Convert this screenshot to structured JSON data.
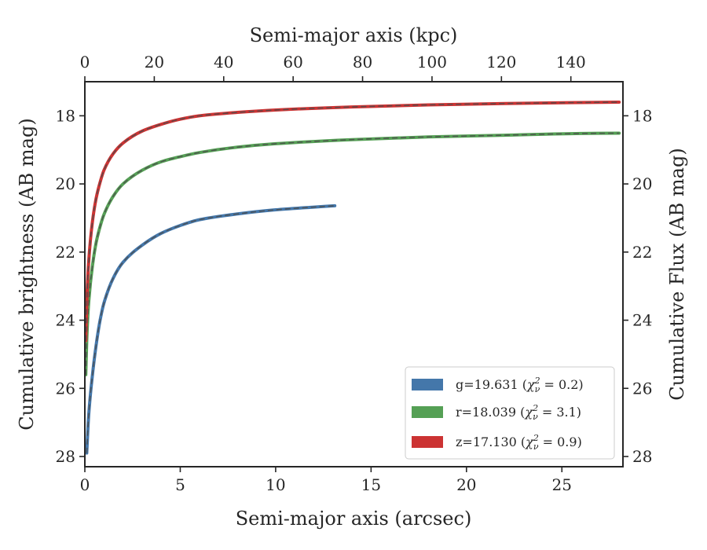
{
  "chart_data": {
    "type": "line",
    "xlabel": "Semi-major axis (arcsec)",
    "x2label": "Semi-major axis (kpc)",
    "ylabel": "Cumulative brightness (AB mag)",
    "y2label": "Cumulative Flux (AB mag)",
    "xlim": [
      0,
      28.2
    ],
    "x2lim": [
      0,
      155
    ],
    "ylim": [
      28.3,
      17.0
    ],
    "y_inverted": true,
    "xticks": [
      "0",
      "5",
      "10",
      "15",
      "20",
      "25"
    ],
    "x2ticks": [
      "0",
      "20",
      "40",
      "60",
      "80",
      "100",
      "120",
      "140"
    ],
    "yticks": [
      "18",
      "20",
      "22",
      "24",
      "26",
      "28"
    ],
    "grid": false,
    "legend_position": "lower-right",
    "series": [
      {
        "name": "g=19.631 ($\\chi^2_\\nu = 0.2$)",
        "name_main": "g=19.631 (",
        "name_chi": "χ",
        "name_rest": " = 0.2)",
        "color": "#4477aa",
        "x": [
          0.1,
          0.2,
          0.4,
          0.6,
          0.8,
          1.0,
          1.5,
          2.0,
          3.0,
          4.0,
          5.0,
          6.0,
          8.0,
          10.0,
          12.0,
          13.1
        ],
        "y": [
          27.9,
          26.8,
          25.6,
          24.7,
          24.0,
          23.5,
          22.75,
          22.3,
          21.8,
          21.45,
          21.22,
          21.05,
          20.88,
          20.76,
          20.68,
          20.64
        ]
      },
      {
        "name": "r=18.039 ($\\chi^2_\\nu = 3.1$)",
        "name_main": "r=18.039 (",
        "name_chi": "χ",
        "name_rest": " = 3.1)",
        "color": "#55a055",
        "x": [
          0.05,
          0.1,
          0.2,
          0.4,
          0.6,
          0.8,
          1.0,
          1.5,
          2.0,
          3.0,
          4.0,
          5.0,
          6.0,
          8.0,
          10.0,
          14.0,
          18.0,
          22.0,
          26.0,
          28.0
        ],
        "y": [
          25.6,
          24.6,
          23.5,
          22.4,
          21.7,
          21.25,
          20.9,
          20.35,
          20.0,
          19.6,
          19.35,
          19.2,
          19.08,
          18.92,
          18.82,
          18.7,
          18.62,
          18.57,
          18.52,
          18.51
        ]
      },
      {
        "name": "z=17.130 ($\\chi^2_\\nu = 0.9$)",
        "name_main": "z=17.130 (",
        "name_chi": "χ",
        "name_rest": " = 0.9)",
        "color": "#cc3333",
        "x": [
          0.05,
          0.1,
          0.2,
          0.4,
          0.6,
          0.8,
          1.0,
          1.5,
          2.0,
          3.0,
          4.0,
          5.0,
          6.0,
          8.0,
          10.0,
          14.0,
          18.0,
          22.0,
          26.0,
          28.0
        ],
        "y": [
          24.6,
          23.5,
          22.3,
          21.1,
          20.4,
          19.95,
          19.6,
          19.1,
          18.8,
          18.45,
          18.25,
          18.1,
          18.0,
          17.9,
          17.83,
          17.74,
          17.68,
          17.64,
          17.61,
          17.6
        ]
      }
    ],
    "model_style": "dashed gray overlay on each curve"
  }
}
